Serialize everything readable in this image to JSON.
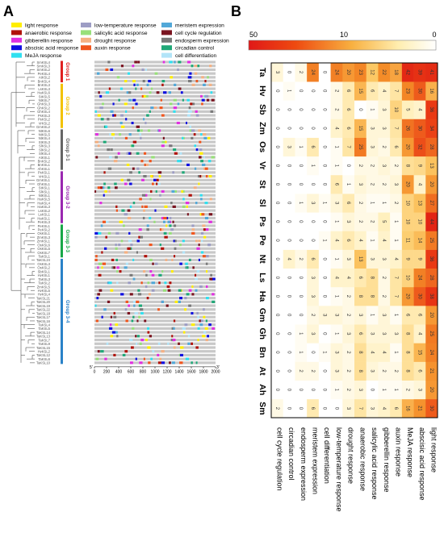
{
  "figure": {
    "panel_a_label": "A",
    "panel_b_label": "B"
  },
  "legend": [
    {
      "label": "light response",
      "color": "#ffee00"
    },
    {
      "label": "anaerobic response",
      "color": "#b0120a"
    },
    {
      "label": "gibberellin response",
      "color": "#e030e0"
    },
    {
      "label": "abscisic acid response",
      "color": "#1010e0"
    },
    {
      "label": "MeJA response",
      "color": "#30e0f0"
    },
    {
      "label": "low-temperature response",
      "color": "#9d9dc4"
    },
    {
      "label": "salicylic acid response",
      "color": "#98e07a"
    },
    {
      "label": "drought response",
      "color": "#f5b183"
    },
    {
      "label": "auxin response",
      "color": "#f0561e"
    },
    {
      "label": "meristem expression",
      "color": "#52a8d8"
    },
    {
      "label": "cell cycle regulation",
      "color": "#7a1420"
    },
    {
      "label": "endosperm expression",
      "color": "#7a7a7a"
    },
    {
      "label": "circadian control",
      "color": "#20a878"
    },
    {
      "label": "cell differentiation",
      "color": "#b2e4f8"
    }
  ],
  "genes": [
    "SmKSL4",
    "SmKSL3",
    "SmKSL2",
    "PeKSL4",
    "AtKSL2",
    "BnKSL4",
    "BnKSL3",
    "LsKSL3",
    "HaKSL6",
    "StKSL5",
    "NtKSL7",
    "GhKSL3",
    "GhKSL2",
    "GhKSL4",
    "PsKSL3",
    "PsKSL2",
    "VrKSL2",
    "GmKSL2",
    "NtKSL6",
    "NtKSL5",
    "NtKSL4",
    "StKSL3",
    "SlKSL3",
    "SlKSL2",
    "SlKSL4",
    "AtKSL1",
    "BnKSL2",
    "BnKSL1",
    "AhKSL1",
    "PsKSL1",
    "VrKSL1",
    "GmKSL1",
    "GhKSL1",
    "StKSL1",
    "SlKSL1",
    "NtKSL1",
    "HaKSL5",
    "HaKSL4",
    "HaKSL3",
    "LsKSL2",
    "LsKSL1",
    "HaKSL1",
    "PeKSL3",
    "PeKSL1",
    "PeKSL2",
    "OsKSL1",
    "ZmKSL3",
    "ZmKSL1",
    "OsKSL6",
    "OsKSL5",
    "OsKSL7",
    "TaKSL1",
    "TaKSL24",
    "OsKSL3",
    "OsKSL2",
    "SbKSL1",
    "HvKSL1",
    "TaKSL3",
    "TaKSL2",
    "ZmKSL5",
    "HvKSL5",
    "HvKSL4",
    "TaKSL21",
    "TaKSL20",
    "TaKSL19",
    "TaKSL22",
    "TaKSL18",
    "TaKSL17",
    "TaKSL16",
    "TaKSL4",
    "TaKSL5",
    "TaKSL14",
    "TaKSL13",
    "TaKSL7",
    "TaKSL9",
    "TaKSL15",
    "HvKSL2",
    "TaKSL12",
    "TaKSL6",
    "TaKSL10"
  ],
  "groups": [
    {
      "name": "Group 1",
      "color": "#e02020"
    },
    {
      "name": "Group 2",
      "color": "#f2c200"
    },
    {
      "name": "Group 3-1",
      "color": "#666666"
    },
    {
      "name": "Group 3-2",
      "color": "#9a28b0"
    },
    {
      "name": "Group 3-3",
      "color": "#18a848"
    },
    {
      "name": "Group 3-4",
      "color": "#2a82c8"
    }
  ],
  "promoter_axis": {
    "five_prime": "5'",
    "three_prime": "3'",
    "ticks": [
      "0",
      "200",
      "400",
      "600",
      "800",
      "1000",
      "1200",
      "1400",
      "1600",
      "1800",
      "2000"
    ],
    "range": [
      0,
      2000
    ]
  },
  "chart_data": {
    "type": "heatmap",
    "colorbar": {
      "ticks": [
        "50",
        "10",
        "0"
      ],
      "range": [
        0,
        50
      ],
      "colors": [
        "#ffffff",
        "#ffeeb0",
        "#f8b040",
        "#ee4a10",
        "#e01818"
      ]
    },
    "x_labels": [
      "Sm",
      "Ah",
      "At",
      "Bn",
      "Gh",
      "Gm",
      "Ha",
      "Ls",
      "Nt",
      "Pe",
      "Ps",
      "Sl",
      "St",
      "Vr",
      "Os",
      "Zm",
      "Sb",
      "Hv",
      "Ta"
    ],
    "y_labels": [
      "cell cycle regulation",
      "circadian control",
      "endosperm expression",
      "meristem expression",
      "cell differentiation",
      "low-temperature response",
      "drought response",
      "anaerobic response",
      "salicylic acid response",
      "gibberellin response",
      "auxin response",
      "MeJA response",
      "abscisic acid response",
      "light response"
    ],
    "values": [
      [
        2,
        0,
        0,
        0,
        0,
        0,
        0,
        0,
        0,
        0,
        0,
        0,
        0,
        0,
        0,
        0,
        0,
        0,
        3
      ],
      [
        0,
        0,
        0,
        0,
        0,
        0,
        0,
        0,
        4,
        0,
        0,
        0,
        0,
        0,
        3,
        0,
        0,
        1,
        0
      ],
      [
        0,
        0,
        2,
        1,
        1,
        0,
        0,
        0,
        2,
        0,
        0,
        1,
        0,
        0,
        1,
        0,
        0,
        0,
        2
      ],
      [
        6,
        0,
        2,
        0,
        3,
        2,
        3,
        3,
        6,
        0,
        0,
        3,
        0,
        1,
        6,
        0,
        0,
        0,
        24
      ],
      [
        0,
        0,
        0,
        1,
        0,
        3,
        0,
        0,
        0,
        1,
        0,
        1,
        0,
        0,
        0,
        0,
        0,
        0,
        0
      ],
      [
        0,
        1,
        3,
        3,
        1,
        3,
        1,
        4,
        1,
        4,
        1,
        3,
        6,
        1,
        1,
        4,
        2,
        2,
        24
      ],
      [
        3,
        2,
        2,
        2,
        3,
        2,
        2,
        4,
        3,
        6,
        3,
        6,
        1,
        0,
        7,
        6,
        6,
        6,
        20
      ],
      [
        7,
        3,
        8,
        8,
        6,
        3,
        8,
        6,
        13,
        4,
        2,
        2,
        3,
        2,
        25,
        15,
        0,
        15,
        23
      ],
      [
        3,
        0,
        3,
        4,
        3,
        1,
        8,
        8,
        3,
        1,
        2,
        1,
        2,
        2,
        3,
        3,
        1,
        6,
        12
      ],
      [
        4,
        1,
        2,
        4,
        3,
        3,
        2,
        2,
        3,
        4,
        5,
        1,
        2,
        3,
        2,
        3,
        3,
        4,
        22
      ],
      [
        6,
        1,
        2,
        1,
        3,
        1,
        7,
        7,
        4,
        1,
        1,
        2,
        3,
        2,
        6,
        7,
        10,
        7,
        18
      ],
      [
        16,
        2,
        8,
        8,
        8,
        6,
        20,
        10,
        9,
        11,
        10,
        10,
        20,
        8,
        20,
        26,
        5,
        23,
        42
      ],
      [
        21,
        3,
        6,
        15,
        4,
        6,
        30,
        24,
        9,
        14,
        10,
        13,
        4,
        9,
        32,
        30,
        4,
        30,
        39
      ],
      [
        30,
        20,
        21,
        24,
        25,
        20,
        38,
        28,
        36,
        25,
        44,
        27,
        20,
        13,
        28,
        34,
        36,
        16,
        41
      ]
    ]
  }
}
